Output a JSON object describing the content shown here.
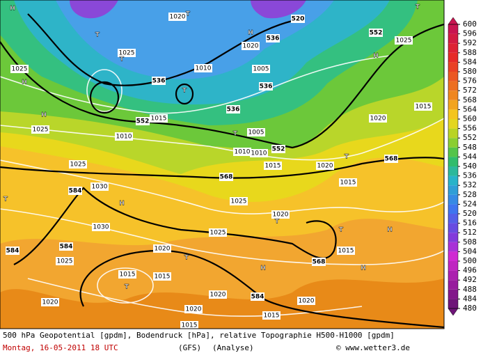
{
  "map": {
    "labels": [
      "520",
      "536",
      "552",
      "536",
      "536",
      "536",
      "552",
      "552",
      "568",
      "568",
      "584",
      "584",
      "584",
      "568",
      "584",
      "1020",
      "1025",
      "1025",
      "1010",
      "1005",
      "1025",
      "1010",
      "1015",
      "1005",
      "1010",
      "1010",
      "1015",
      "1020",
      "1025",
      "1030",
      "1025",
      "1030",
      "1025",
      "1020",
      "1020",
      "1025",
      "1015",
      "1015",
      "1020",
      "1020",
      "1020",
      "1020",
      "1015",
      "1015",
      "1015",
      "1015",
      "1020",
      "1025",
      "1015",
      "1020",
      "H",
      "H",
      "H",
      "T",
      "T",
      "H",
      "T",
      "T",
      "T",
      "T",
      "H",
      "T",
      "T",
      "T",
      "H",
      "T",
      "H",
      "H",
      "T",
      "H",
      "T"
    ]
  },
  "colorbar": {
    "ticks": [
      600,
      596,
      592,
      588,
      584,
      580,
      576,
      572,
      568,
      564,
      560,
      556,
      552,
      548,
      544,
      540,
      536,
      532,
      528,
      524,
      520,
      516,
      512,
      508,
      504,
      500,
      496,
      492,
      488,
      484,
      480
    ]
  },
  "footer": {
    "line1": "500 hPa Geopotential [gpdm], Bodendruck [hPa], relative Topographie H500-H1000 [gpdm]",
    "date": "Montag, 16-05-2011  18 UTC",
    "model": "(GFS)",
    "kind": "(Analyse)",
    "credit": "© www.wetter3.de"
  }
}
